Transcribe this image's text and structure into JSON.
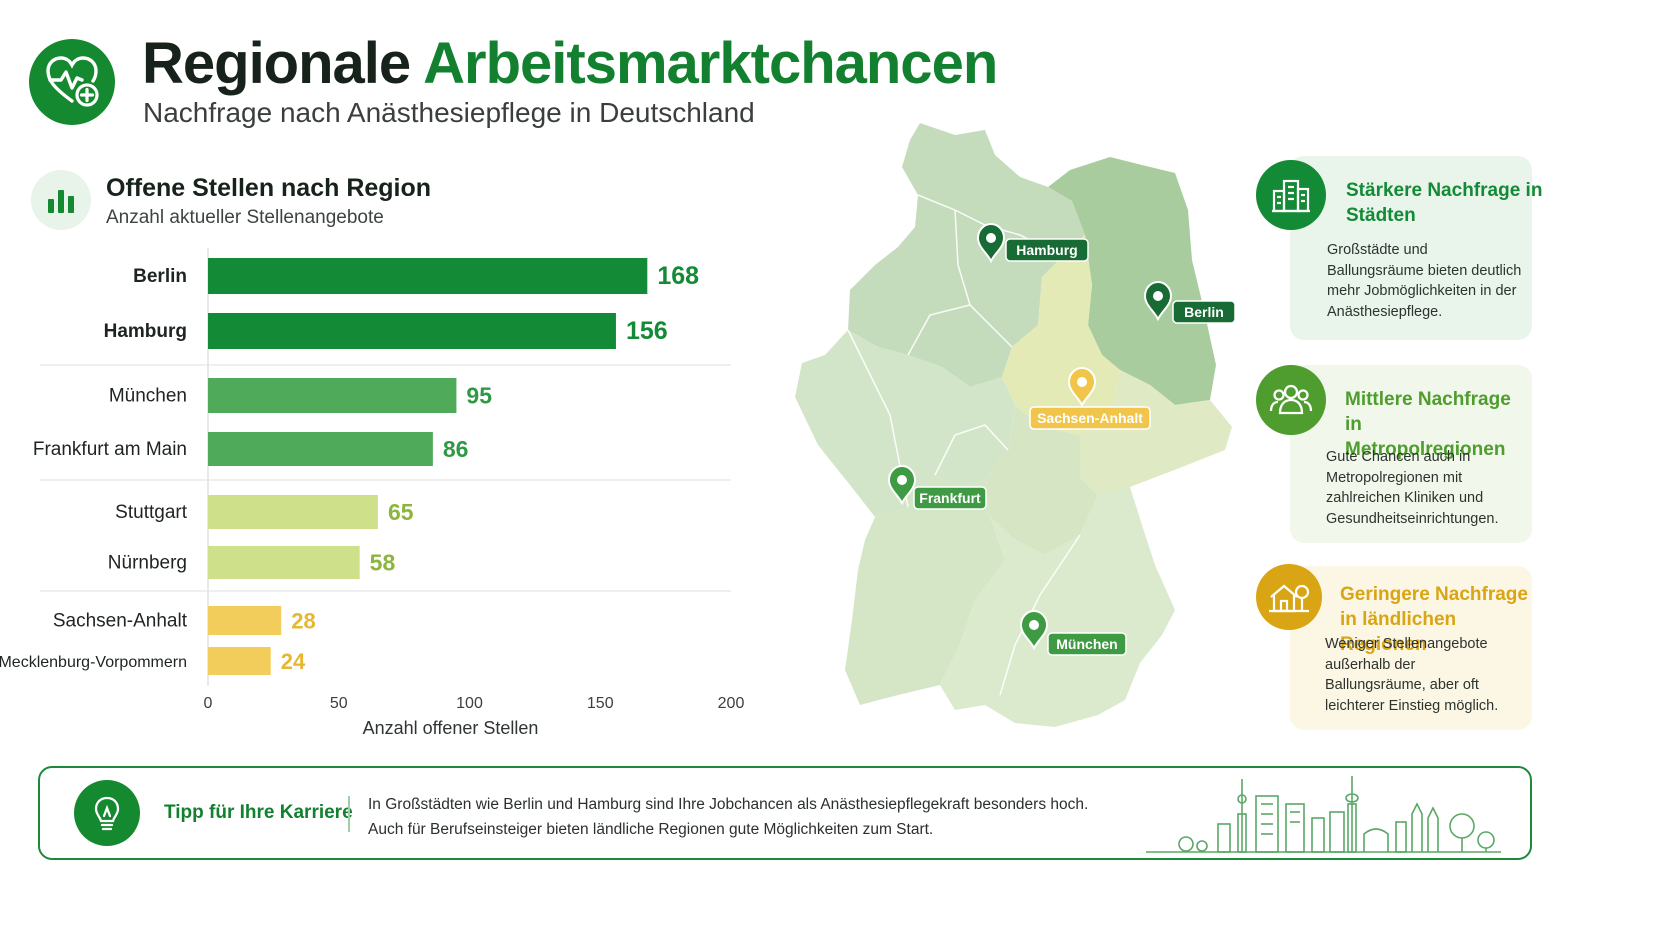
{
  "header": {
    "title_part1": "Regionale",
    "title_part2": "Arbeitsmarktchancen",
    "subtitle": "Nachfrage nach Anästhesiepflege in Deutschland",
    "logo_icon": "heart-pulse-plus-icon"
  },
  "chart_section": {
    "title": "Offene Stellen nach Region",
    "subtitle": "Anzahl aktueller Stellenangebote",
    "icon": "bar-chart-icon"
  },
  "chart_data": {
    "type": "bar",
    "orientation": "horizontal",
    "categories": [
      "Berlin",
      "Hamburg",
      "München",
      "Frankfurt am Main",
      "Stuttgart",
      "Nürnberg",
      "Sachsen-Anhalt",
      "Mecklenburg-Vorpommern"
    ],
    "values": [
      168,
      156,
      95,
      86,
      65,
      58,
      28,
      24
    ],
    "groups": [
      {
        "categories": [
          "Berlin",
          "Hamburg"
        ],
        "color": "#138a35"
      },
      {
        "categories": [
          "München",
          "Frankfurt am Main"
        ],
        "color": "#4faa5a"
      },
      {
        "categories": [
          "Stuttgart",
          "Nürnberg"
        ],
        "color": "#cfe08a"
      },
      {
        "categories": [
          "Sachsen-Anhalt",
          "Mecklenburg-Vorpommern"
        ],
        "color": "#f3cd5c"
      }
    ],
    "value_label_colors": [
      "#138a35",
      "#138a35",
      "#2f9a45",
      "#2f9a45",
      "#8db53e",
      "#8db53e",
      "#e6b730",
      "#e6b730"
    ],
    "bold_categories": [
      "Berlin",
      "Hamburg"
    ],
    "xlabel": "Anzahl offener Stellen",
    "xlim": [
      0,
      200
    ],
    "xticks": [
      0,
      50,
      100,
      150,
      200
    ]
  },
  "map": {
    "markers": [
      {
        "label": "Hamburg",
        "color": "#186b34"
      },
      {
        "label": "Berlin",
        "color": "#186b34"
      },
      {
        "label": "Sachsen-Anhalt",
        "color": "#f0c54a"
      },
      {
        "label": "Frankfurt",
        "color": "#3f9a44"
      },
      {
        "label": "München",
        "color": "#3f9a44"
      }
    ]
  },
  "cards": [
    {
      "title": "Stärkere Nachfrage in Städten",
      "text": "Großstädte und Ballungsräume bieten deutlich mehr Jobmöglichkeiten in der Anästhesiepflege.",
      "icon": "city-buildings-icon",
      "accent": "#138a35",
      "bg": "#e9f4eb"
    },
    {
      "title": "Mittlere Nachfrage in Metropolregionen",
      "text": "Gute Chancen auch in Metropolregionen mit zahlreichen Kliniken und Gesundheitseinrichtungen.",
      "icon": "people-group-icon",
      "accent": "#4f9c2f",
      "bg": "#f1f7ea"
    },
    {
      "title": "Geringere Nachfrage in ländlichen Regionen",
      "text": "Weniger Stellenangebote außerhalb der Ballungsräume, aber oft leichterer Einstieg möglich.",
      "icon": "house-tree-icon",
      "accent": "#d9a514",
      "bg": "#fcf6e4"
    }
  ],
  "tip": {
    "title": "Tipp für Ihre Karriere",
    "line1": "In Großstädten wie Berlin und Hamburg sind Ihre Jobchancen als Anästhesiepflegekraft besonders hoch.",
    "line2": "Auch für Berufseinsteiger bieten ländliche Regionen gute Möglichkeiten zum Start.",
    "icon": "lightbulb-icon",
    "decoration": "city-skyline-icon"
  }
}
